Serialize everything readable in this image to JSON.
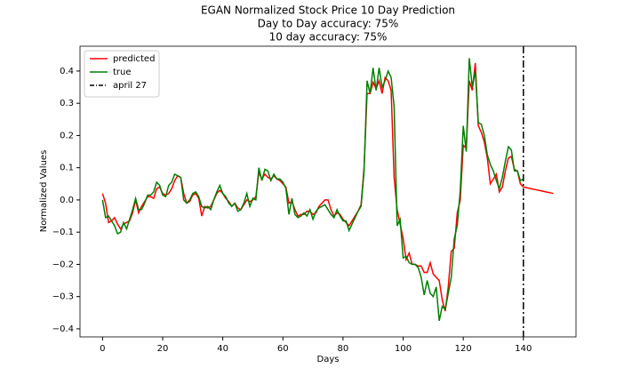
{
  "chart_data": {
    "type": "line",
    "title": "EGAN Normalized Stock Price 10 Day Prediction",
    "subtitle": [
      "Day to Day accuracy: 75%",
      "10 day accuracy: 75%"
    ],
    "xlabel": "Days",
    "ylabel": "Normalized Values",
    "x": [
      0,
      1,
      2,
      3,
      4,
      5,
      6,
      7,
      8,
      9,
      10,
      11,
      12,
      13,
      14,
      15,
      16,
      17,
      18,
      19,
      20,
      21,
      22,
      23,
      24,
      25,
      26,
      27,
      28,
      29,
      30,
      31,
      32,
      33,
      34,
      35,
      36,
      37,
      38,
      39,
      40,
      41,
      42,
      43,
      44,
      45,
      46,
      47,
      48,
      49,
      50,
      51,
      52,
      53,
      54,
      55,
      56,
      57,
      58,
      59,
      60,
      61,
      62,
      63,
      64,
      65,
      66,
      67,
      68,
      69,
      70,
      71,
      72,
      73,
      74,
      75,
      76,
      77,
      78,
      79,
      80,
      81,
      82,
      83,
      84,
      85,
      86,
      87,
      88,
      89,
      90,
      91,
      92,
      93,
      94,
      95,
      96,
      97,
      98,
      99,
      100,
      101,
      102,
      103,
      104,
      105,
      106,
      107,
      108,
      109,
      110,
      111,
      112,
      113,
      114,
      115,
      116,
      117,
      118,
      119,
      120,
      121,
      122,
      123,
      124,
      125,
      126,
      127,
      128,
      129,
      130,
      131,
      132,
      133,
      134,
      135,
      136,
      137,
      138,
      139,
      140,
      141,
      142,
      143,
      144,
      145,
      146,
      147,
      148,
      149,
      150
    ],
    "series": [
      {
        "name": "predicted",
        "color": "#ff0000",
        "values": [
          0.02,
          -0.01,
          -0.07,
          -0.065,
          -0.055,
          -0.075,
          -0.09,
          -0.075,
          -0.07,
          -0.065,
          -0.04,
          0.0,
          -0.04,
          -0.02,
          -0.005,
          0.01,
          0.01,
          0.005,
          0.035,
          0.04,
          0.02,
          0.015,
          0.02,
          0.035,
          0.06,
          0.075,
          0.07,
          0.02,
          -0.01,
          -0.005,
          0.015,
          0.02,
          0.005,
          -0.05,
          -0.02,
          -0.025,
          -0.02,
          0.0,
          0.02,
          0.03,
          0.02,
          0.005,
          -0.005,
          -0.02,
          -0.01,
          -0.025,
          -0.03,
          -0.015,
          0.0,
          -0.005,
          0.0,
          0.01,
          0.085,
          0.065,
          0.08,
          0.07,
          0.065,
          0.075,
          0.065,
          0.06,
          0.05,
          0.04,
          -0.01,
          -0.005,
          -0.03,
          -0.05,
          -0.045,
          -0.045,
          -0.035,
          -0.035,
          -0.045,
          -0.04,
          -0.02,
          -0.01,
          0.0,
          0.0,
          -0.03,
          -0.05,
          -0.04,
          -0.045,
          -0.06,
          -0.07,
          -0.08,
          -0.065,
          -0.05,
          -0.035,
          -0.015,
          0.1,
          0.33,
          0.33,
          0.365,
          0.345,
          0.37,
          0.33,
          0.38,
          0.37,
          0.34,
          0.07,
          -0.03,
          -0.075,
          -0.12,
          -0.185,
          -0.165,
          -0.2,
          -0.2,
          -0.205,
          -0.205,
          -0.225,
          -0.225,
          -0.195,
          -0.23,
          -0.24,
          -0.25,
          -0.31,
          -0.345,
          -0.27,
          -0.16,
          -0.15,
          -0.04,
          0.0,
          0.17,
          0.16,
          0.37,
          0.34,
          0.425,
          0.23,
          0.21,
          0.18,
          0.13,
          0.05,
          0.065,
          0.08,
          0.025,
          0.04,
          0.09,
          0.13,
          0.135,
          0.095,
          0.09,
          0.05,
          0.04,
          0.038,
          0.036,
          0.034,
          0.032,
          0.03,
          0.028,
          0.026,
          0.024,
          0.022,
          0.02
        ]
      },
      {
        "name": "true",
        "color": "#008000",
        "values": [
          0.0,
          -0.055,
          -0.05,
          -0.065,
          -0.08,
          -0.105,
          -0.1,
          -0.07,
          -0.09,
          -0.06,
          -0.03,
          0.005,
          -0.03,
          -0.03,
          -0.01,
          0.015,
          0.015,
          0.025,
          0.055,
          0.045,
          0.015,
          0.01,
          0.045,
          0.055,
          0.08,
          0.075,
          0.07,
          0.0,
          -0.01,
          0.0,
          0.02,
          0.025,
          0.01,
          -0.02,
          -0.025,
          -0.02,
          -0.03,
          0.0,
          0.025,
          0.045,
          0.02,
          0.01,
          -0.01,
          -0.02,
          -0.01,
          -0.035,
          -0.03,
          -0.01,
          0.02,
          -0.02,
          0.005,
          0.0,
          0.1,
          0.06,
          0.095,
          0.09,
          0.06,
          0.08,
          0.065,
          0.065,
          0.055,
          0.035,
          -0.045,
          0.005,
          -0.045,
          -0.055,
          -0.05,
          -0.04,
          -0.05,
          -0.03,
          -0.06,
          -0.035,
          -0.025,
          -0.02,
          -0.015,
          -0.03,
          -0.045,
          -0.055,
          -0.03,
          -0.05,
          -0.065,
          -0.065,
          -0.095,
          -0.075,
          -0.055,
          -0.035,
          -0.02,
          0.09,
          0.37,
          0.33,
          0.41,
          0.34,
          0.41,
          0.35,
          0.37,
          0.4,
          0.38,
          0.29,
          -0.08,
          -0.06,
          -0.18,
          -0.175,
          -0.195,
          -0.2,
          -0.2,
          -0.21,
          -0.24,
          -0.295,
          -0.25,
          -0.29,
          -0.3,
          -0.27,
          -0.375,
          -0.33,
          -0.34,
          -0.29,
          -0.24,
          -0.12,
          -0.08,
          0.03,
          0.23,
          0.15,
          0.44,
          0.35,
          0.4,
          0.24,
          0.235,
          0.2,
          0.14,
          0.11,
          0.09,
          0.06,
          0.035,
          0.07,
          0.12,
          0.165,
          0.155,
          0.09,
          0.09,
          0.06,
          0.065,
          null,
          null,
          null,
          null,
          null,
          null,
          null,
          null,
          null,
          null
        ]
      }
    ],
    "vline": {
      "name": "april 27",
      "x": 140,
      "color": "#000000"
    },
    "xlim": [
      -7.5,
      157.5
    ],
    "xticks": [
      0,
      20,
      40,
      60,
      80,
      100,
      120,
      140
    ],
    "ylim": [
      -0.425,
      0.477
    ],
    "yticks": [
      {
        "value": -0.4,
        "label": "−0.4"
      },
      {
        "value": -0.3,
        "label": "−0.3"
      },
      {
        "value": -0.2,
        "label": "−0.2"
      },
      {
        "value": -0.1,
        "label": "−0.1"
      },
      {
        "value": 0,
        "label": "0.0"
      },
      0.1,
      0.2,
      0.3,
      0.4
    ],
    "legend": "upper left",
    "grid": false
  }
}
